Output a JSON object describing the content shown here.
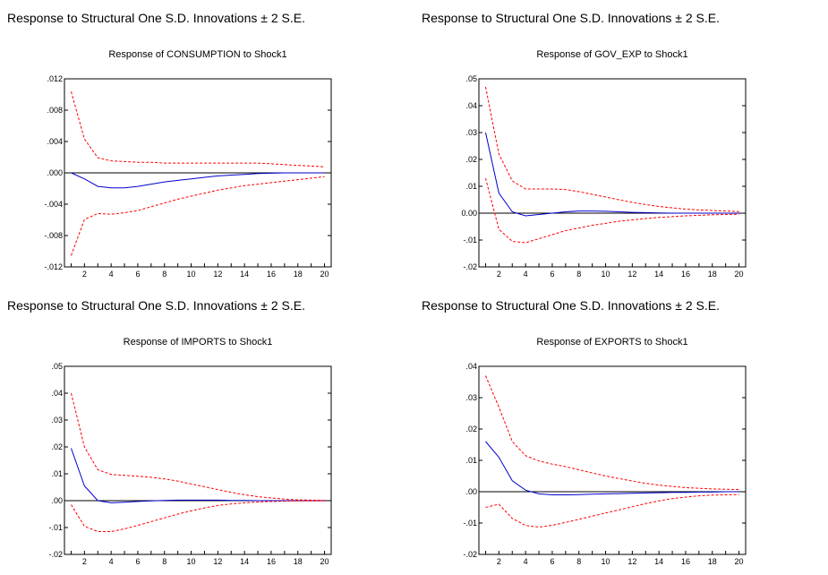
{
  "charts": [
    {
      "header": "Response to Structural One S.D. Innovations ± 2 S.E.",
      "chart_data": {
        "type": "line",
        "title": "Response of CONSUMPTION to Shock1",
        "x": [
          1,
          2,
          3,
          4,
          5,
          6,
          7,
          8,
          9,
          10,
          11,
          12,
          13,
          14,
          15,
          16,
          17,
          18,
          19,
          20
        ],
        "xticks": [
          "2",
          "4",
          "6",
          "8",
          "10",
          "12",
          "14",
          "16",
          "18",
          "20"
        ],
        "ylim": [
          -0.0125,
          0.0125
        ],
        "yticks": [
          ".012",
          ".008",
          ".004",
          ".000",
          "-.004",
          "-.008",
          "-.012"
        ],
        "series": [
          {
            "color": "#0000cc",
            "style": "solid",
            "values": [
              0,
              -0.0008,
              -0.0018,
              -0.002,
              -0.002,
              -0.0018,
              -0.0015,
              -0.0012,
              -0.001,
              -0.0008,
              -0.0006,
              -0.0004,
              -0.0003,
              -0.0002,
              -0.0001,
              -5e-05,
              0,
              0,
              0,
              0
            ]
          },
          {
            "color": "#ff0000",
            "style": "dashed",
            "values": [
              0.0108,
              0.0045,
              0.002,
              0.0016,
              0.0015,
              0.0014,
              0.0014,
              0.0013,
              0.0013,
              0.0013,
              0.0013,
              0.0013,
              0.0013,
              0.0013,
              0.0013,
              0.0012,
              0.0011,
              0.001,
              0.0009,
              0.0008
            ]
          },
          {
            "color": "#ff0000",
            "style": "dashed",
            "values": [
              -0.011,
              -0.0062,
              -0.0054,
              -0.0055,
              -0.0053,
              -0.005,
              -0.0045,
              -0.004,
              -0.0035,
              -0.0031,
              -0.0027,
              -0.0023,
              -0.002,
              -0.0017,
              -0.0015,
              -0.0013,
              -0.0011,
              -0.0009,
              -0.0007,
              -0.0005
            ]
          }
        ]
      }
    },
    {
      "header": "Response to Structural One S.D. Innovations ± 2 S.E.",
      "chart_data": {
        "type": "line",
        "title": "Response of GOV_EXP to Shock1",
        "x": [
          1,
          2,
          3,
          4,
          5,
          6,
          7,
          8,
          9,
          10,
          11,
          12,
          13,
          14,
          15,
          16,
          17,
          18,
          19,
          20
        ],
        "xticks": [
          "2",
          "4",
          "6",
          "8",
          "10",
          "12",
          "14",
          "16",
          "18",
          "20"
        ],
        "ylim": [
          -0.02,
          0.05
        ],
        "yticks": [
          ".05",
          ".04",
          ".03",
          ".02",
          ".01",
          "0.00",
          "-.01",
          "-.02"
        ],
        "series": [
          {
            "color": "#0000cc",
            "style": "solid",
            "values": [
              0.03,
              0.0075,
              0.0005,
              -0.001,
              -0.0005,
              0,
              0.0005,
              0.0008,
              0.0008,
              0.0007,
              0.0005,
              0.0003,
              0.0002,
              0.0001,
              0,
              0,
              0,
              0,
              0,
              0
            ]
          },
          {
            "color": "#ff0000",
            "style": "dashed",
            "values": [
              0.047,
              0.022,
              0.012,
              0.009,
              0.009,
              0.009,
              0.0088,
              0.008,
              0.007,
              0.006,
              0.005,
              0.004,
              0.0032,
              0.0025,
              0.002,
              0.0015,
              0.0012,
              0.001,
              0.0008,
              0.0006
            ]
          },
          {
            "color": "#ff0000",
            "style": "dashed",
            "values": [
              0.013,
              -0.006,
              -0.0105,
              -0.011,
              -0.0095,
              -0.008,
              -0.0065,
              -0.0055,
              -0.0045,
              -0.0038,
              -0.003,
              -0.0025,
              -0.002,
              -0.0016,
              -0.0013,
              -0.001,
              -0.0008,
              -0.0006,
              -0.0005,
              -0.0004
            ]
          }
        ]
      }
    },
    {
      "header": "Response to Structural One S.D. Innovations ± 2 S.E.",
      "chart_data": {
        "type": "line",
        "title": "Response of IMPORTS to Shock1",
        "x": [
          1,
          2,
          3,
          4,
          5,
          6,
          7,
          8,
          9,
          10,
          11,
          12,
          13,
          14,
          15,
          16,
          17,
          18,
          19,
          20
        ],
        "xticks": [
          "2",
          "4",
          "6",
          "8",
          "10",
          "12",
          "14",
          "16",
          "18",
          "20"
        ],
        "ylim": [
          -0.02,
          0.05
        ],
        "yticks": [
          ".05",
          ".04",
          ".03",
          ".02",
          ".01",
          ".00",
          "-.01",
          "-.02"
        ],
        "series": [
          {
            "color": "#0000cc",
            "style": "solid",
            "values": [
              0.0195,
              0.0055,
              0,
              -0.0008,
              -0.0006,
              -0.0003,
              -0.0001,
              0.0001,
              0.0002,
              0.0002,
              0.0002,
              0.0002,
              0.0001,
              0.0001,
              0,
              0,
              0,
              0,
              0,
              0
            ]
          },
          {
            "color": "#ff0000",
            "style": "dashed",
            "values": [
              0.04,
              0.02,
              0.0115,
              0.0098,
              0.0094,
              0.0091,
              0.0087,
              0.0081,
              0.0073,
              0.0062,
              0.0052,
              0.0041,
              0.0031,
              0.0022,
              0.0015,
              0.001,
              0.0006,
              0.0003,
              0.0002,
              0.0001
            ]
          },
          {
            "color": "#ff0000",
            "style": "dashed",
            "values": [
              -0.0015,
              -0.0095,
              -0.0115,
              -0.0115,
              -0.0105,
              -0.0092,
              -0.0078,
              -0.0064,
              -0.005,
              -0.0038,
              -0.0027,
              -0.0018,
              -0.0012,
              -0.0008,
              -0.0005,
              -0.0003,
              -0.0002,
              -0.0001,
              -0.0001,
              -0.0001
            ]
          }
        ]
      }
    },
    {
      "header": "Response to Structural One S.D. Innovations ± 2 S.E.",
      "chart_data": {
        "type": "line",
        "title": "Response of EXPORTS to Shock1",
        "x": [
          1,
          2,
          3,
          4,
          5,
          6,
          7,
          8,
          9,
          10,
          11,
          12,
          13,
          14,
          15,
          16,
          17,
          18,
          19,
          20
        ],
        "xticks": [
          "2",
          "4",
          "6",
          "8",
          "10",
          "12",
          "14",
          "16",
          "18",
          "20"
        ],
        "ylim": [
          -0.02,
          0.04
        ],
        "yticks": [
          ".04",
          ".03",
          ".02",
          ".01",
          ".00",
          "-.01",
          "-.02"
        ],
        "series": [
          {
            "color": "#0000cc",
            "style": "solid",
            "values": [
              0.016,
              0.011,
              0.0035,
              0.0005,
              -0.0007,
              -0.001,
              -0.001,
              -0.0009,
              -0.0008,
              -0.0007,
              -0.0006,
              -0.0005,
              -0.0004,
              -0.0003,
              -0.0002,
              -0.0002,
              -0.0001,
              -0.0001,
              0,
              0
            ]
          },
          {
            "color": "#ff0000",
            "style": "dashed",
            "values": [
              0.037,
              0.027,
              0.016,
              0.0115,
              0.0098,
              0.0088,
              0.008,
              0.007,
              0.006,
              0.005,
              0.0042,
              0.0034,
              0.0027,
              0.0021,
              0.0017,
              0.0013,
              0.0011,
              0.0009,
              0.0008,
              0.0007
            ]
          },
          {
            "color": "#ff0000",
            "style": "dashed",
            "values": [
              -0.005,
              -0.004,
              -0.0085,
              -0.0108,
              -0.0113,
              -0.0107,
              -0.0098,
              -0.0088,
              -0.0078,
              -0.0068,
              -0.0058,
              -0.0048,
              -0.0038,
              -0.0029,
              -0.0022,
              -0.0017,
              -0.0013,
              -0.0011,
              -0.001,
              -0.0009
            ]
          }
        ]
      }
    }
  ]
}
